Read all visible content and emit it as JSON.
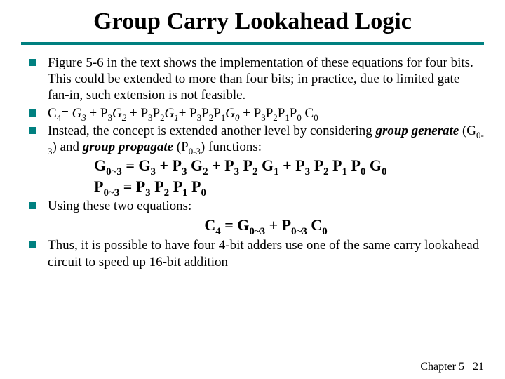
{
  "title": "Group Carry Lookahead Logic",
  "colors": {
    "accent": "#008080",
    "text": "#000000",
    "background": "#ffffff"
  },
  "bullets": {
    "b1": "Figure 5-6 in the text shows the implementation of these equations for four bits. This could be extended to more than four bits; in practice, due to limited gate fan-in, such extension is not feasible.",
    "b2": {
      "lhs": "C",
      "lhs_sub": "4",
      "eq": "= ",
      "rhs_html": "G<sub>3</sub> + P<sub>3</sub>G<sub>2</sub> + P<sub>3</sub>P<sub>2</sub>G<sub>1</sub>+ P<sub>3</sub>P<sub>2</sub>P<sub>1</sub>G<sub>0</sub> + P<sub>3</sub>P<sub>2</sub>P<sub>1</sub>P<sub>0</sub> C<sub>0</sub>"
    },
    "b3_pre": "Instead, the concept is extended another level by considering ",
    "b3_gg": "group generate",
    "b3_mid1": " (G",
    "b3_sub1": "0-3",
    "b3_mid2": ") and ",
    "b3_gp": "group propagate",
    "b3_mid3": " (P",
    "b3_sub2": "0-3",
    "b3_post": ") functions:",
    "b4": "Using these two equations:",
    "b5": "Thus, it is possible to have four 4-bit adders use one of the same carry lookahead circuit to speed up 16-bit addition"
  },
  "equations": {
    "g03": "G",
    "g03_sub": "0~3",
    "g03_eq": " = G",
    "g03_s3": "3",
    "g03_p1": " + P",
    "g03_p1s": "3",
    "g03_g2": " G",
    "g03_g2s": "2",
    "g03_p2": " + P",
    "g03_p2s": "3",
    "g03_pp2": " P",
    "g03_pp2s": "2",
    "g03_g1": " G",
    "g03_g1s": "1",
    "g03_p3": " + P",
    "g03_p3s": "3",
    "g03_pp3a": " P",
    "g03_pp3as": "2",
    "g03_pp3b": " P",
    "g03_pp3bs": "1",
    "g03_pp3c": " P",
    "g03_pp3cs": "0",
    "g03_g0": " G",
    "g03_g0s": "0",
    "p03": "P",
    "p03_sub": "0~3",
    "p03_eq": " = P",
    "p03_s3": "3",
    "p03_p2": " P",
    "p03_p2s": "2",
    "p03_p1": " P",
    "p03_p1s": "1",
    "p03_p0": " P",
    "p03_p0s": "0",
    "c4": "C",
    "c4_sub": "4",
    "c4_eq": " = G",
    "c4_g": "0~3",
    "c4_p": " + P",
    "c4_ps": "0~3",
    "c4_c": " C",
    "c4_cs": "0"
  },
  "footer": {
    "chapter": "Chapter 5",
    "page": "21"
  }
}
